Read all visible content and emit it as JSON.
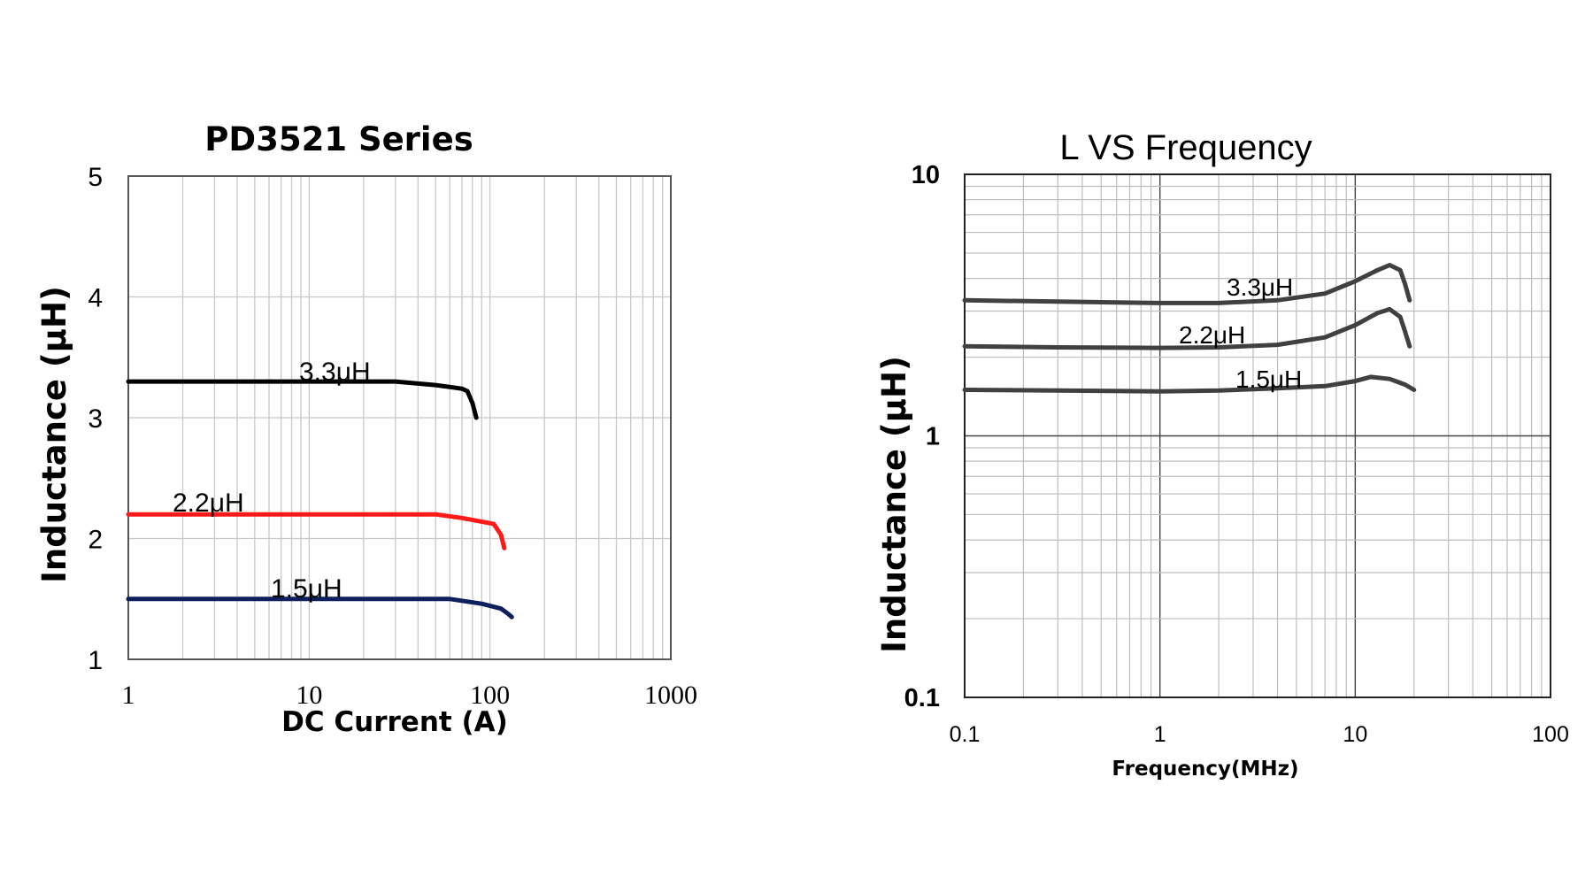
{
  "chart_data": [
    {
      "type": "line",
      "title": "PD3521 Series",
      "xlabel": "DC Current (A)",
      "ylabel": "Inductance (μH)",
      "xscale": "log",
      "xlim": [
        1,
        1000
      ],
      "ylim": [
        1,
        5
      ],
      "xticks": [
        "1",
        "10",
        "100",
        "1000"
      ],
      "yticks": [
        "1",
        "2",
        "3",
        "4",
        "5"
      ],
      "grid": true,
      "series": [
        {
          "name": "3.3μH",
          "color": "#000000",
          "x": [
            1,
            10,
            30,
            50,
            70,
            75,
            80,
            84
          ],
          "y": [
            3.3,
            3.3,
            3.3,
            3.27,
            3.24,
            3.22,
            3.12,
            3.0
          ]
        },
        {
          "name": "2.2μH",
          "color": "#ff1a1a",
          "x": [
            1,
            20,
            50,
            70,
            90,
            105,
            115,
            120
          ],
          "y": [
            2.2,
            2.2,
            2.2,
            2.17,
            2.14,
            2.12,
            2.03,
            1.92
          ]
        },
        {
          "name": "1.5μH",
          "color": "#0d1f5c",
          "x": [
            1,
            20,
            60,
            90,
            115,
            125,
            132
          ],
          "y": [
            1.5,
            1.5,
            1.5,
            1.46,
            1.42,
            1.38,
            1.35
          ]
        }
      ]
    },
    {
      "type": "line",
      "title": "L VS Frequency",
      "xlabel": "Frequency(MHz)",
      "ylabel": "Inductance (μH)",
      "xscale": "log",
      "yscale": "log",
      "xlim": [
        0.1,
        100
      ],
      "ylim": [
        0.1,
        10
      ],
      "xticks": [
        "0.1",
        "1",
        "10",
        "100"
      ],
      "yticks": [
        "0.1",
        "1",
        "10"
      ],
      "grid": true,
      "series": [
        {
          "name": "3.3μH",
          "color": "#404040",
          "x": [
            0.1,
            0.3,
            1,
            2,
            4,
            7,
            10,
            13,
            15,
            17,
            18,
            19
          ],
          "y": [
            3.3,
            3.26,
            3.22,
            3.22,
            3.3,
            3.5,
            3.9,
            4.3,
            4.5,
            4.3,
            3.8,
            3.3
          ]
        },
        {
          "name": "2.2μH",
          "color": "#404040",
          "x": [
            0.1,
            0.3,
            1,
            2,
            4,
            7,
            10,
            13,
            15,
            17,
            18,
            19
          ],
          "y": [
            2.2,
            2.18,
            2.17,
            2.18,
            2.23,
            2.38,
            2.65,
            2.95,
            3.05,
            2.85,
            2.5,
            2.2
          ]
        },
        {
          "name": "1.5μH",
          "color": "#404040",
          "x": [
            0.1,
            0.3,
            1,
            2,
            4,
            7,
            10,
            12,
            15,
            18,
            20
          ],
          "y": [
            1.5,
            1.49,
            1.48,
            1.49,
            1.52,
            1.55,
            1.62,
            1.68,
            1.65,
            1.57,
            1.5
          ]
        }
      ]
    }
  ]
}
